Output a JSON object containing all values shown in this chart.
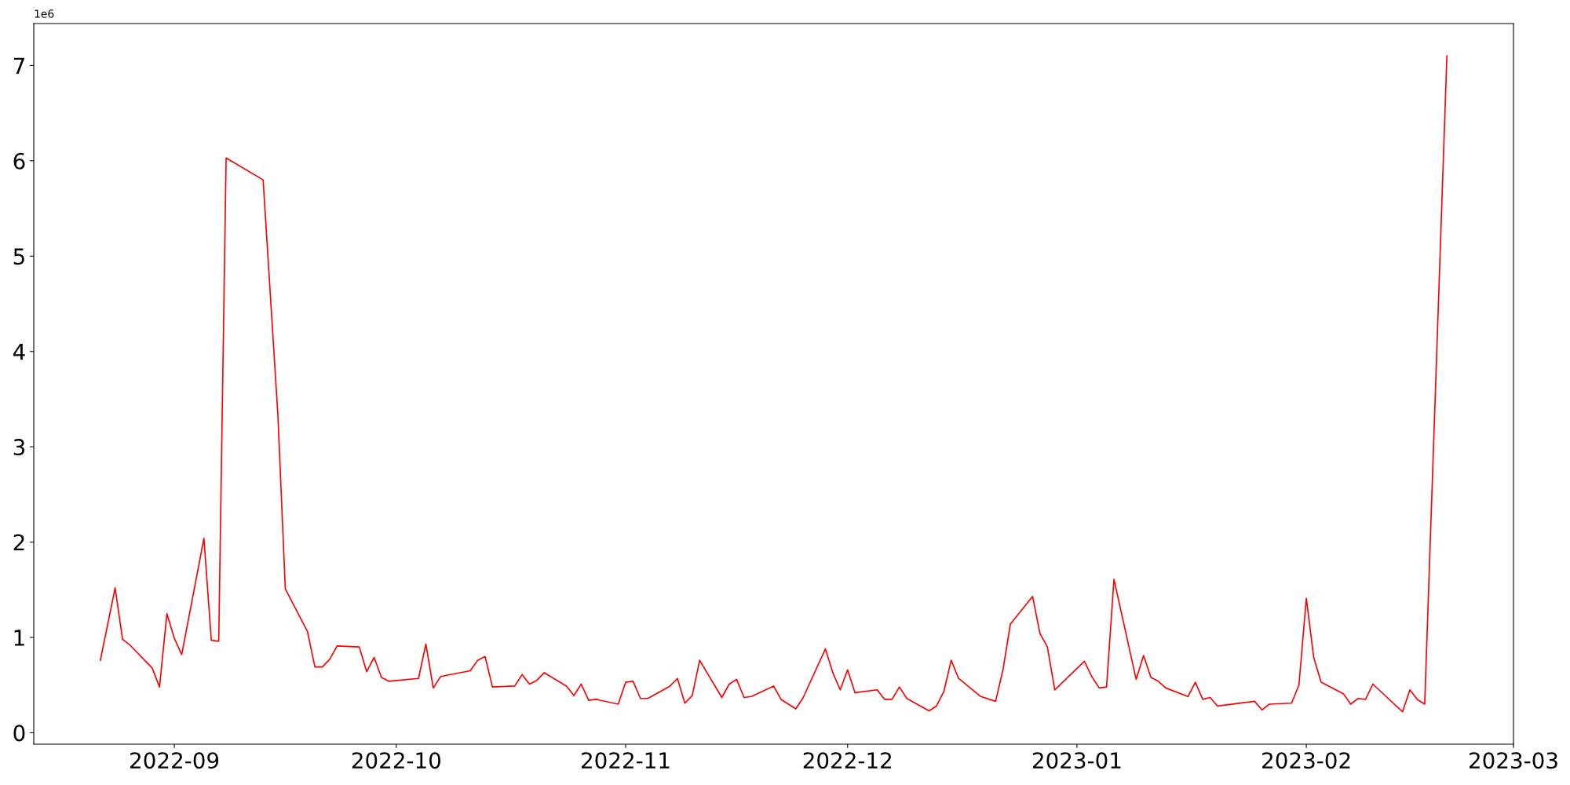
{
  "chart_data": {
    "type": "line",
    "x": [
      "2022-08-22",
      "2022-08-24",
      "2022-08-25",
      "2022-08-26",
      "2022-08-29",
      "2022-08-30",
      "2022-08-31",
      "2022-09-01",
      "2022-09-02",
      "2022-09-05",
      "2022-09-06",
      "2022-09-07",
      "2022-09-08",
      "2022-09-13",
      "2022-09-15",
      "2022-09-16",
      "2022-09-19",
      "2022-09-20",
      "2022-09-21",
      "2022-09-22",
      "2022-09-23",
      "2022-09-26",
      "2022-09-27",
      "2022-09-28",
      "2022-09-29",
      "2022-09-30",
      "2022-10-04",
      "2022-10-05",
      "2022-10-06",
      "2022-10-07",
      "2022-10-11",
      "2022-10-12",
      "2022-10-13",
      "2022-10-14",
      "2022-10-17",
      "2022-10-18",
      "2022-10-19",
      "2022-10-20",
      "2022-10-21",
      "2022-10-24",
      "2022-10-25",
      "2022-10-26",
      "2022-10-27",
      "2022-10-28",
      "2022-10-31",
      "2022-11-01",
      "2022-11-02",
      "2022-11-03",
      "2022-11-04",
      "2022-11-07",
      "2022-11-08",
      "2022-11-09",
      "2022-11-10",
      "2022-11-11",
      "2022-11-14",
      "2022-11-15",
      "2022-11-16",
      "2022-11-17",
      "2022-11-18",
      "2022-11-21",
      "2022-11-22",
      "2022-11-24",
      "2022-11-25",
      "2022-11-28",
      "2022-11-29",
      "2022-11-30",
      "2022-12-01",
      "2022-12-02",
      "2022-12-05",
      "2022-12-06",
      "2022-12-07",
      "2022-12-08",
      "2022-12-09",
      "2022-12-12",
      "2022-12-13",
      "2022-12-14",
      "2022-12-15",
      "2022-12-16",
      "2022-12-19",
      "2022-12-21",
      "2022-12-22",
      "2022-12-23",
      "2022-12-26",
      "2022-12-27",
      "2022-12-28",
      "2022-12-29",
      "2023-01-02",
      "2023-01-03",
      "2023-01-04",
      "2023-01-05",
      "2023-01-06",
      "2023-01-09",
      "2023-01-10",
      "2023-01-11",
      "2023-01-12",
      "2023-01-13",
      "2023-01-16",
      "2023-01-17",
      "2023-01-18",
      "2023-01-19",
      "2023-01-20",
      "2023-01-25",
      "2023-01-26",
      "2023-01-27",
      "2023-01-30",
      "2023-01-31",
      "2023-02-01",
      "2023-02-02",
      "2023-02-03",
      "2023-02-06",
      "2023-02-07",
      "2023-02-08",
      "2023-02-09",
      "2023-02-10",
      "2023-02-14",
      "2023-02-15",
      "2023-02-16",
      "2023-02-17",
      "2023-02-20"
    ],
    "series": [
      {
        "color": "#ff0000",
        "values": [
          0.76,
          1.52,
          0.98,
          0.92,
          0.68,
          0.48,
          1.25,
          0.99,
          0.82,
          2.04,
          0.97,
          0.96,
          6.03,
          5.8,
          3.33,
          1.51,
          1.06,
          0.69,
          0.69,
          0.77,
          0.91,
          0.9,
          0.64,
          0.79,
          0.58,
          0.54,
          0.57,
          0.93,
          0.47,
          0.59,
          0.65,
          0.76,
          0.8,
          0.48,
          0.49,
          0.61,
          0.51,
          0.55,
          0.63,
          0.49,
          0.39,
          0.51,
          0.34,
          0.35,
          0.3,
          0.53,
          0.54,
          0.36,
          0.36,
          0.49,
          0.57,
          0.31,
          0.39,
          0.76,
          0.37,
          0.51,
          0.56,
          0.37,
          0.38,
          0.49,
          0.35,
          0.25,
          0.37,
          0.88,
          0.63,
          0.45,
          0.66,
          0.42,
          0.45,
          0.35,
          0.35,
          0.48,
          0.36,
          0.23,
          0.28,
          0.43,
          0.76,
          0.57,
          0.38,
          0.33,
          0.66,
          1.14,
          1.43,
          1.04,
          0.9,
          0.45,
          0.75,
          0.59,
          0.47,
          0.48,
          1.61,
          0.56,
          0.81,
          0.58,
          0.54,
          0.47,
          0.38,
          0.53,
          0.35,
          0.37,
          0.28,
          0.33,
          0.24,
          0.3,
          0.31,
          0.5,
          1.41,
          0.79,
          0.53,
          0.41,
          0.3,
          0.36,
          0.35,
          0.51,
          0.22,
          0.45,
          0.35,
          0.3,
          7.1
        ]
      }
    ],
    "xlim": [
      "2022-08-13",
      "2023-03-01"
    ],
    "xticks": [
      {
        "value": "2022-09-01",
        "label": "2022-09"
      },
      {
        "value": "2022-10-01",
        "label": "2022-10"
      },
      {
        "value": "2022-11-01",
        "label": "2022-11"
      },
      {
        "value": "2022-12-01",
        "label": "2022-12"
      },
      {
        "value": "2023-01-01",
        "label": "2023-01"
      },
      {
        "value": "2023-02-01",
        "label": "2023-02"
      },
      {
        "value": "2023-03-01",
        "label": "2023-03"
      }
    ],
    "ylim": [
      -0.12,
      7.44
    ],
    "yticks": [
      0,
      1,
      2,
      3,
      4,
      5,
      6,
      7
    ],
    "annotations": [
      "1e6"
    ],
    "grid": false,
    "marker": "none",
    "line_style": "solid"
  }
}
